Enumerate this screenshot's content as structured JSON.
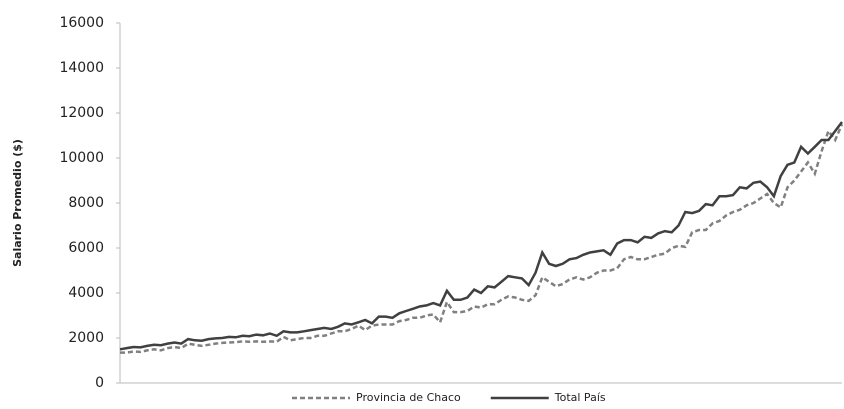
{
  "chart_data": {
    "type": "line",
    "y_label": "Salario Promedio ($)",
    "categories": [
      null,
      null,
      null,
      null,
      null,
      null,
      null,
      null,
      null,
      null,
      null,
      null,
      null,
      null,
      null,
      null,
      null,
      null,
      null,
      null,
      null,
      null,
      null,
      null,
      null,
      null,
      null,
      null,
      null,
      null,
      null,
      null,
      null,
      null,
      null,
      null,
      null,
      null,
      null,
      null,
      null,
      null,
      null,
      null,
      null,
      null,
      null,
      null,
      null,
      null,
      null,
      null,
      null,
      null,
      null,
      null,
      null,
      null,
      null,
      null,
      null,
      null,
      null,
      null,
      null,
      null,
      null,
      null,
      null,
      null,
      null,
      null,
      null,
      null,
      null,
      null,
      null,
      null,
      null,
      null,
      null,
      null,
      null,
      null,
      null,
      null,
      null,
      null,
      null,
      null,
      null,
      null,
      null,
      null,
      null,
      null,
      null,
      null,
      null,
      null,
      null,
      null,
      null,
      null,
      null,
      null,
      null
    ],
    "series": [
      {
        "name": "Provincia de Chaco",
        "color": "#808080",
        "dash": true,
        "values": [
          1350,
          1350,
          1400,
          1380,
          1450,
          1500,
          1450,
          1550,
          1600,
          1550,
          1750,
          1700,
          1650,
          1700,
          1750,
          1780,
          1800,
          1820,
          1850,
          1830,
          1850,
          1830,
          1850,
          1830,
          2050,
          1900,
          1950,
          2000,
          2000,
          2100,
          2100,
          2200,
          2300,
          2300,
          2400,
          2550,
          2350,
          2550,
          2600,
          2600,
          2600,
          2750,
          2800,
          2900,
          2900,
          3000,
          3050,
          2700,
          3600,
          3150,
          3150,
          3200,
          3400,
          3350,
          3500,
          3500,
          3700,
          3850,
          3800,
          3700,
          3650,
          3900,
          4700,
          4500,
          4300,
          4400,
          4600,
          4700,
          4600,
          4700,
          4900,
          5000,
          5000,
          5100,
          5500,
          5600,
          5500,
          5500,
          5600,
          5700,
          5750,
          6000,
          6100,
          6050,
          6700,
          6800,
          6800,
          7100,
          7200,
          7450,
          7600,
          7700,
          7900,
          8000,
          8200,
          8400,
          8000,
          7800,
          8700,
          9000,
          9400,
          9800,
          9300,
          10300,
          11200,
          10800,
          11500
        ]
      },
      {
        "name": "Total País",
        "color": "#404040",
        "dash": false,
        "values": [
          1500,
          1550,
          1600,
          1580,
          1650,
          1700,
          1680,
          1750,
          1800,
          1750,
          1950,
          1900,
          1880,
          1950,
          1980,
          2000,
          2050,
          2030,
          2100,
          2080,
          2150,
          2120,
          2200,
          2100,
          2300,
          2250,
          2250,
          2300,
          2350,
          2400,
          2450,
          2400,
          2500,
          2650,
          2600,
          2700,
          2800,
          2650,
          2950,
          2950,
          2900,
          3100,
          3200,
          3300,
          3400,
          3450,
          3550,
          3450,
          4100,
          3700,
          3700,
          3800,
          4150,
          4000,
          4300,
          4250,
          4500,
          4750,
          4700,
          4650,
          4350,
          4900,
          5800,
          5300,
          5200,
          5300,
          5500,
          5550,
          5700,
          5800,
          5850,
          5900,
          5700,
          6200,
          6350,
          6350,
          6250,
          6500,
          6450,
          6650,
          6750,
          6700,
          7000,
          7600,
          7550,
          7650,
          7950,
          7900,
          8300,
          8300,
          8350,
          8700,
          8650,
          8900,
          8950,
          8700,
          8300,
          9200,
          9700,
          9800,
          10500,
          10200,
          10500,
          10800,
          10800,
          11200,
          11600
        ]
      }
    ],
    "ylim": [
      0,
      16000
    ],
    "yticks": [
      0,
      2000,
      4000,
      6000,
      8000,
      10000,
      12000,
      14000,
      16000
    ],
    "grid": false
  }
}
